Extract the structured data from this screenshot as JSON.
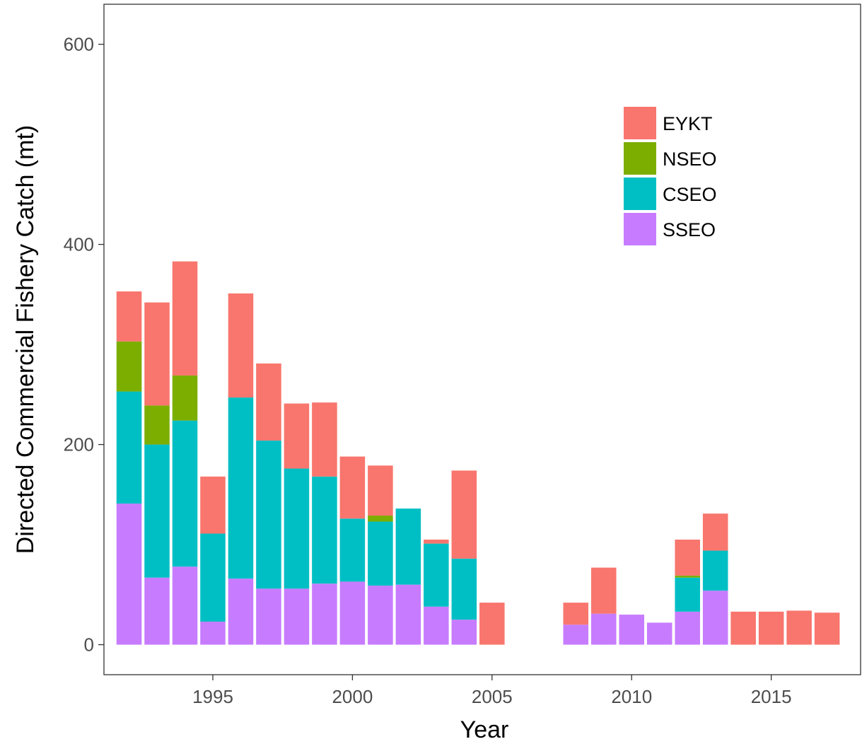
{
  "chart_data": {
    "type": "bar",
    "stacked": true,
    "title": "",
    "xlabel": "Year",
    "ylabel": "Directed Commercial Fishery Catch (mt)",
    "xlim": [
      1991.1,
      2018.2
    ],
    "ylim": [
      -30,
      640
    ],
    "xticks": [
      1995,
      2000,
      2005,
      2010,
      2015
    ],
    "yticks": [
      0,
      200,
      400,
      600
    ],
    "grid": false,
    "legend_position": "top-right",
    "categories": [
      1992,
      1993,
      1994,
      1995,
      1996,
      1997,
      1998,
      1999,
      2000,
      2001,
      2002,
      2003,
      2004,
      2005,
      2008,
      2009,
      2010,
      2011,
      2012,
      2013,
      2014,
      2015,
      2016,
      2017
    ],
    "series": [
      {
        "name": "SSEO",
        "color": "#C77CFF",
        "values": [
          141,
          67,
          78,
          23,
          66,
          56,
          56,
          61,
          63,
          59,
          60,
          38,
          25,
          0,
          20,
          31,
          30,
          22,
          33,
          54,
          0,
          0,
          0,
          0
        ]
      },
      {
        "name": "CSEO",
        "color": "#00BFC4",
        "values": [
          112,
          133,
          146,
          88,
          181,
          148,
          120,
          107,
          63,
          64,
          76,
          63,
          61,
          0,
          0,
          0,
          0,
          0,
          34,
          40,
          0,
          0,
          0,
          0
        ]
      },
      {
        "name": "NSEO",
        "color": "#7CAE00",
        "values": [
          50,
          39,
          45,
          0,
          0,
          0,
          0,
          0,
          0,
          6,
          0,
          0,
          0,
          0,
          0,
          0,
          0,
          0,
          2,
          0,
          0,
          0,
          0,
          0
        ]
      },
      {
        "name": "EYKT",
        "color": "#F8766D",
        "values": [
          50,
          103,
          114,
          57,
          104,
          77,
          65,
          74,
          62,
          50,
          0,
          4,
          88,
          42,
          22,
          46,
          0,
          0,
          36,
          37,
          33,
          33,
          34,
          32
        ]
      }
    ],
    "legend_order": [
      "EYKT",
      "NSEO",
      "CSEO",
      "SSEO"
    ]
  }
}
